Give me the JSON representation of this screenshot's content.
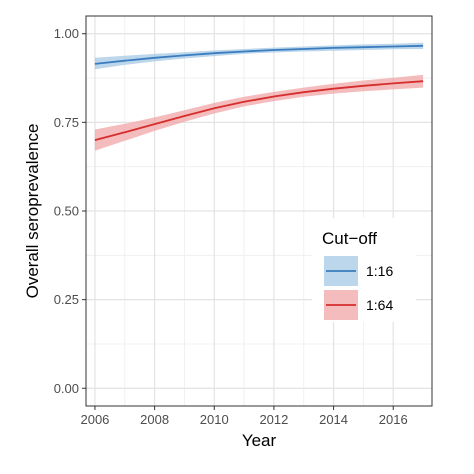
{
  "chart_data": {
    "type": "line",
    "xlabel": "Year",
    "ylabel": "Overall seroprevalence",
    "xlim": [
      2005.7,
      2017.3
    ],
    "ylim": [
      -0.05,
      1.05
    ],
    "xticks": [
      2006,
      2008,
      2010,
      2012,
      2014,
      2016
    ],
    "xtick_labels": [
      "2006",
      "2008",
      "2010",
      "2012",
      "2014",
      "2016"
    ],
    "yticks": [
      0.0,
      0.25,
      0.5,
      0.75,
      1.0
    ],
    "ytick_labels": [
      "0.00",
      "0.25",
      "0.50",
      "0.75",
      "1.00"
    ],
    "grid": true,
    "legend": {
      "title": "Cut−off",
      "placement": "right-center inside"
    },
    "x": [
      2006,
      2007,
      2008,
      2009,
      2010,
      2011,
      2012,
      2013,
      2014,
      2015,
      2016,
      2017
    ],
    "series": [
      {
        "name": "1:16",
        "color": "#3a7dbf",
        "band_color": "#9fc4e3",
        "values": [
          0.915,
          0.924,
          0.932,
          0.939,
          0.945,
          0.95,
          0.954,
          0.957,
          0.96,
          0.962,
          0.964,
          0.966
        ],
        "lower": [
          0.9,
          0.912,
          0.922,
          0.93,
          0.937,
          0.943,
          0.947,
          0.95,
          0.952,
          0.954,
          0.956,
          0.957
        ],
        "upper": [
          0.932,
          0.938,
          0.943,
          0.948,
          0.953,
          0.957,
          0.961,
          0.964,
          0.967,
          0.97,
          0.972,
          0.975
        ]
      },
      {
        "name": "1:64",
        "color": "#d62d2d",
        "band_color": "#f0a0a0",
        "values": [
          0.7,
          0.722,
          0.745,
          0.768,
          0.79,
          0.808,
          0.823,
          0.835,
          0.845,
          0.853,
          0.86,
          0.866
        ],
        "lower": [
          0.67,
          0.698,
          0.726,
          0.752,
          0.775,
          0.795,
          0.81,
          0.822,
          0.831,
          0.838,
          0.843,
          0.848
        ],
        "upper": [
          0.73,
          0.746,
          0.764,
          0.784,
          0.805,
          0.822,
          0.836,
          0.848,
          0.859,
          0.868,
          0.876,
          0.884
        ]
      }
    ]
  }
}
